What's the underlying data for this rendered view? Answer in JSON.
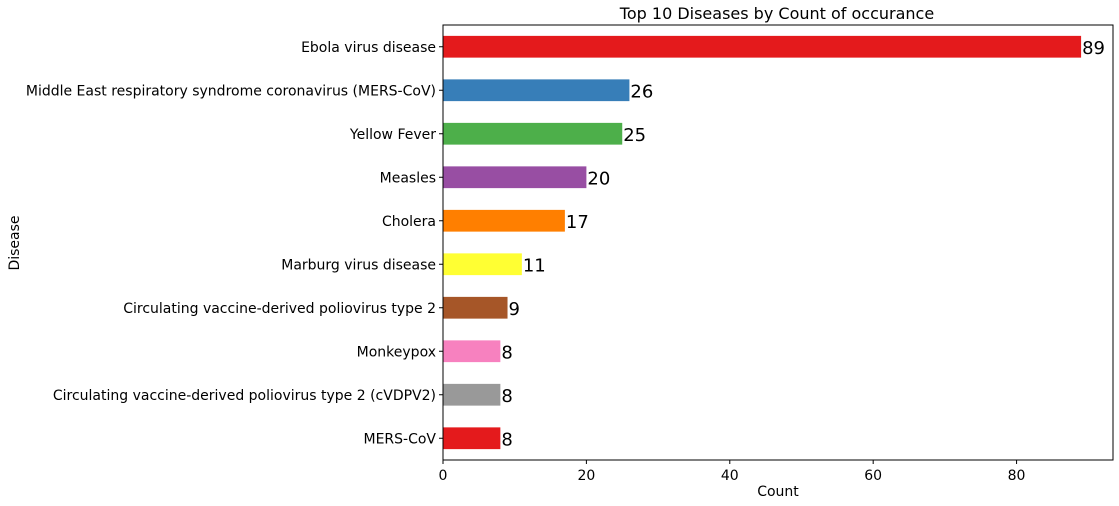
{
  "chart_data": {
    "type": "bar",
    "orientation": "horizontal",
    "title": "Top 10 Diseases by Count of occurance",
    "xlabel": "Count",
    "ylabel": "Disease",
    "xlim": [
      0,
      93.45
    ],
    "xticks": [
      0,
      20,
      40,
      60,
      80
    ],
    "grid": false,
    "categories": [
      "MERS-CoV",
      "Circulating vaccine-derived poliovirus type 2 (cVDPV2)",
      "Monkeypox",
      "Circulating vaccine-derived poliovirus type 2",
      "Marburg virus disease",
      "Cholera",
      "Measles",
      "Yellow Fever",
      "Middle East respiratory syndrome coronavirus (MERS-CoV)",
      "Ebola virus disease"
    ],
    "values": [
      8,
      8,
      8,
      9,
      11,
      17,
      20,
      25,
      26,
      89
    ],
    "colors": [
      "#e41a1c",
      "#999999",
      "#f781bf",
      "#a65628",
      "#ffff33",
      "#ff7f00",
      "#984ea3",
      "#4daf4a",
      "#377eb8",
      "#e41a1c"
    ]
  }
}
